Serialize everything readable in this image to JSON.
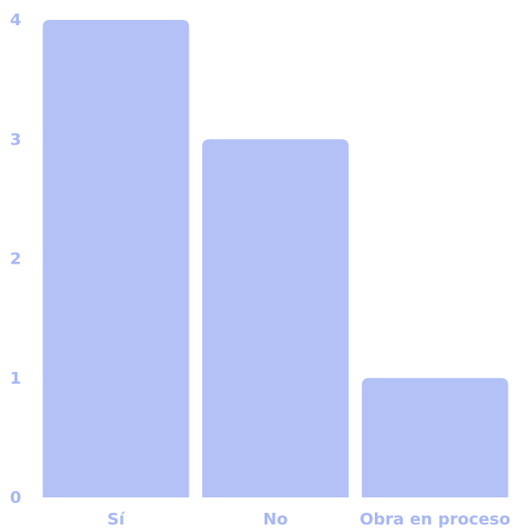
{
  "chart_data": {
    "type": "bar",
    "categories": [
      "Sí",
      "No",
      "Obra en proceso"
    ],
    "values": [
      4,
      3,
      1
    ],
    "title": "",
    "xlabel": "",
    "ylabel": "",
    "ylim": [
      0,
      4
    ],
    "yticks": [
      "0",
      "1",
      "2",
      "3",
      "4"
    ],
    "grid": false,
    "legend": "none",
    "colors": {
      "bar": "#b3c1f7",
      "tick_text": "#a8b7f5"
    }
  }
}
